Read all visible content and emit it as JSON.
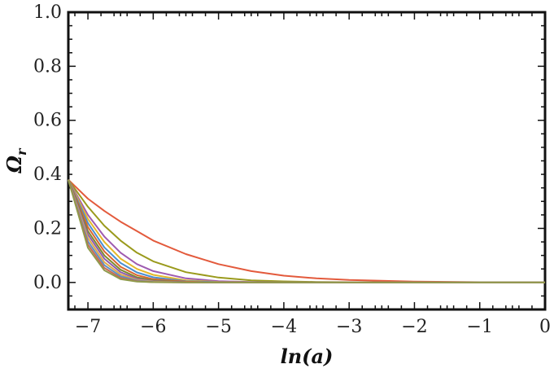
{
  "chart_data": {
    "type": "line",
    "title": "",
    "xlabel": "ln(a)",
    "ylabel_main": "Ω",
    "ylabel_sub": "r",
    "xlim": [
      -7.3,
      0
    ],
    "ylim": [
      -0.1,
      1.0
    ],
    "x_ticks": [
      -7,
      -6,
      -5,
      -4,
      -3,
      -2,
      -1,
      0
    ],
    "x_tick_labels": [
      "−7",
      "−6",
      "−5",
      "−4",
      "−3",
      "−2",
      "−1",
      "0"
    ],
    "y_ticks": [
      0.0,
      0.2,
      0.4,
      0.6,
      0.8,
      1.0
    ],
    "y_tick_labels": [
      "0.0",
      "0.2",
      "0.4",
      "0.6",
      "0.8",
      "1.0"
    ],
    "grid": false,
    "legend": "none",
    "x": [
      -7.3,
      -7.0,
      -6.75,
      -6.5,
      -6.25,
      -6.0,
      -5.5,
      -5.0,
      -4.5,
      -4.0,
      -3.5,
      -3.0,
      -2.0,
      -1.0,
      0.0
    ],
    "series": [
      {
        "color": "#e35a3c",
        "values": [
          0.38,
          0.31,
          0.265,
          0.225,
          0.19,
          0.155,
          0.105,
          0.068,
          0.042,
          0.025,
          0.015,
          0.009,
          0.003,
          0.001,
          0.0
        ]
      },
      {
        "color": "#9a9a1c",
        "values": [
          0.38,
          0.28,
          0.21,
          0.155,
          0.11,
          0.078,
          0.038,
          0.018,
          0.008,
          0.004,
          0.002,
          0.001,
          0.0,
          0.0,
          0.0
        ]
      },
      {
        "color": "#9e5bb0",
        "values": [
          0.38,
          0.25,
          0.17,
          0.11,
          0.068,
          0.042,
          0.015,
          0.005,
          0.002,
          0.001,
          0.0,
          0.0,
          0.0,
          0.0,
          0.0
        ]
      },
      {
        "color": "#e5b82a",
        "values": [
          0.38,
          0.235,
          0.15,
          0.088,
          0.05,
          0.028,
          0.008,
          0.002,
          0.001,
          0.0,
          0.0,
          0.0,
          0.0,
          0.0,
          0.0
        ]
      },
      {
        "color": "#4a8fd0",
        "values": [
          0.38,
          0.22,
          0.13,
          0.072,
          0.037,
          0.019,
          0.005,
          0.001,
          0.0,
          0.0,
          0.0,
          0.0,
          0.0,
          0.0,
          0.0
        ]
      },
      {
        "color": "#d9662f",
        "values": [
          0.38,
          0.205,
          0.115,
          0.058,
          0.027,
          0.012,
          0.003,
          0.0,
          0.0,
          0.0,
          0.0,
          0.0,
          0.0,
          0.0,
          0.0
        ]
      },
      {
        "color": "#7e8a2e",
        "values": [
          0.38,
          0.19,
          0.1,
          0.047,
          0.019,
          0.008,
          0.001,
          0.0,
          0.0,
          0.0,
          0.0,
          0.0,
          0.0,
          0.0,
          0.0
        ]
      },
      {
        "color": "#8c5cb0",
        "values": [
          0.38,
          0.178,
          0.088,
          0.038,
          0.014,
          0.005,
          0.001,
          0.0,
          0.0,
          0.0,
          0.0,
          0.0,
          0.0,
          0.0,
          0.0
        ]
      },
      {
        "color": "#e0a94a",
        "values": [
          0.38,
          0.165,
          0.075,
          0.03,
          0.01,
          0.003,
          0.0,
          0.0,
          0.0,
          0.0,
          0.0,
          0.0,
          0.0,
          0.0,
          0.0
        ]
      },
      {
        "color": "#5d8fc4",
        "values": [
          0.38,
          0.152,
          0.064,
          0.023,
          0.007,
          0.002,
          0.0,
          0.0,
          0.0,
          0.0,
          0.0,
          0.0,
          0.0,
          0.0,
          0.0
        ]
      },
      {
        "color": "#c86a52",
        "values": [
          0.38,
          0.14,
          0.054,
          0.017,
          0.005,
          0.001,
          0.0,
          0.0,
          0.0,
          0.0,
          0.0,
          0.0,
          0.0,
          0.0,
          0.0
        ]
      },
      {
        "color": "#8f9a4c",
        "values": [
          0.38,
          0.128,
          0.045,
          0.012,
          0.003,
          0.001,
          0.0,
          0.0,
          0.0,
          0.0,
          0.0,
          0.0,
          0.0,
          0.0,
          0.0
        ]
      }
    ]
  }
}
